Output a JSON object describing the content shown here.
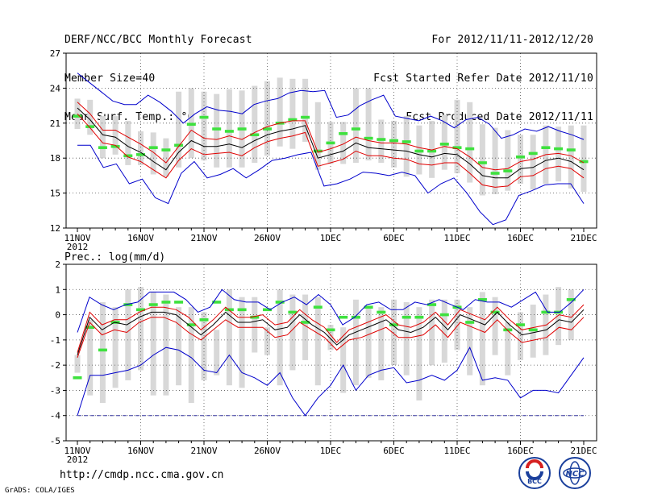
{
  "header": {
    "left": [
      "DERF/NCC/BCC Monthly Forecast",
      "Member Size=40",
      "Mean Surf. Temp.: °C"
    ],
    "right": [
      "For 2012/11/11-2012/12/20",
      "Fcst Started Refer Date 2012/11/10",
      "Fcst Produced Date 2012/11/11"
    ]
  },
  "footer": {
    "url": "http://cmdp.ncc.cma.gov.cn",
    "credit": "GrADS: COLA/IGES",
    "logo_bcc_text": "BCC",
    "logo_ncc_text": "NCC"
  },
  "colors": {
    "ensemble_mean": "#000000",
    "std_band": "#e00000",
    "extreme": "#0000cc",
    "observed_bar": "#3ee13e",
    "spread_box": "#d8d8d8",
    "grid": "#555555"
  },
  "chart_data": [
    {
      "type": "line",
      "title": "Mean Surf. Temp.: °C",
      "x_tick_labels": [
        "11NOV",
        "16NOV",
        "21NOV",
        "26NOV",
        "1DEC",
        "6DEC",
        "11DEC",
        "16DEC",
        "21DEC"
      ],
      "x_year_label": "2012",
      "ylim": [
        12,
        27
      ],
      "y_ticks": [
        12,
        15,
        18,
        21,
        24,
        27
      ],
      "series": [
        {
          "name": "Maximum",
          "values": [
            25.3,
            24.5,
            23.7,
            22.9,
            22.6,
            22.6,
            23.4,
            22.8,
            22.0,
            21.0,
            21.8,
            22.4,
            22.1,
            22.0,
            21.8,
            22.6,
            22.9,
            23.1,
            23.6,
            23.8,
            23.7,
            23.8,
            21.5,
            21.7,
            22.5,
            23.0,
            23.4,
            21.6,
            21.4,
            21.2,
            21.6,
            21.2,
            20.6,
            21.3,
            21.5,
            20.9,
            19.7,
            20.0,
            20.5,
            20.3,
            20.7,
            20.3,
            20.0,
            19.6
          ]
        },
        {
          "name": "Mean + 1 SD",
          "values": [
            22.8,
            21.8,
            20.4,
            20.4,
            19.8,
            19.2,
            18.5,
            17.6,
            19.0,
            20.4,
            19.7,
            19.6,
            19.9,
            19.6,
            20.2,
            20.7,
            21.0,
            21.2,
            21.2,
            18.5,
            18.8,
            19.2,
            19.8,
            19.5,
            19.3,
            19.3,
            19.2,
            18.9,
            18.7,
            19.0,
            18.8,
            18.1,
            17.2,
            17.0,
            17.1,
            17.7,
            17.9,
            18.3,
            18.4,
            18.2,
            17.6
          ]
        },
        {
          "name": "Ensemble Mean",
          "values": [
            22.3,
            21.3,
            20.0,
            19.8,
            19.0,
            18.5,
            17.7,
            17.0,
            18.5,
            19.5,
            19.0,
            19.0,
            19.2,
            18.9,
            19.5,
            20.0,
            20.3,
            20.5,
            20.8,
            18.0,
            18.3,
            18.6,
            19.3,
            18.9,
            18.8,
            18.7,
            18.6,
            18.3,
            18.1,
            18.4,
            18.3,
            17.5,
            16.5,
            16.3,
            16.3,
            17.1,
            17.2,
            17.8,
            18.0,
            17.7,
            17.0
          ]
        },
        {
          "name": "Mean - 1 SD",
          "values": [
            21.8,
            20.6,
            19.3,
            19.1,
            18.1,
            17.7,
            17.0,
            16.3,
            17.8,
            18.8,
            18.3,
            18.4,
            18.5,
            18.2,
            18.9,
            19.4,
            19.7,
            19.9,
            20.2,
            17.3,
            17.6,
            17.9,
            18.6,
            18.2,
            18.2,
            18.0,
            17.9,
            17.5,
            17.4,
            17.6,
            17.6,
            16.7,
            15.7,
            15.5,
            15.6,
            16.4,
            16.5,
            17.1,
            17.3,
            17.1,
            16.3
          ]
        },
        {
          "name": "Minimum",
          "values": [
            19.1,
            19.1,
            17.2,
            17.5,
            15.8,
            16.2,
            14.6,
            14.1,
            16.7,
            17.7,
            16.3,
            16.6,
            17.1,
            16.3,
            17.0,
            17.8,
            18.0,
            18.3,
            18.5,
            15.6,
            15.8,
            16.2,
            16.8,
            16.7,
            16.5,
            16.8,
            16.5,
            15.0,
            15.8,
            16.3,
            15.0,
            13.4,
            12.3,
            12.7,
            14.8,
            15.2,
            15.7,
            15.8,
            15.8,
            14.1
          ]
        }
      ],
      "spread_box_low": [
        20.5,
        20.0,
        18.0,
        18.3,
        17.4,
        17.4,
        16.6,
        16.4,
        17.2,
        18.0,
        17.8,
        17.2,
        17.2,
        17.2,
        17.6,
        18.2,
        19.0,
        18.8,
        19.4,
        17.0,
        17.5,
        17.5,
        17.6,
        17.8,
        17.6,
        17.2,
        16.4,
        16.6,
        16.3,
        17.0,
        16.7,
        15.9,
        14.8,
        14.9,
        15.2,
        15.8,
        15.3,
        15.8,
        16.0,
        15.4,
        15.1
      ],
      "spread_box_high": [
        23.1,
        23.0,
        21.6,
        21.6,
        21.2,
        20.3,
        20.2,
        19.7,
        23.7,
        24.0,
        23.7,
        23.5,
        23.9,
        23.8,
        24.2,
        24.6,
        24.9,
        24.8,
        24.8,
        22.8,
        21.1,
        21.1,
        24.0,
        24.0,
        21.3,
        21.2,
        21.6,
        20.8,
        21.2,
        21.7,
        23.0,
        22.8,
        20.9,
        20.6,
        20.4,
        20.0,
        20.0,
        20.8,
        20.7,
        20.8,
        20.8
      ],
      "observed_marks": [
        21.6,
        20.7,
        18.9,
        19.0,
        18.2,
        18.3,
        18.9,
        18.7,
        19.1,
        20.9,
        21.5,
        20.5,
        20.3,
        20.5,
        20.0,
        20.5,
        21.0,
        21.3,
        21.5,
        18.6,
        19.3,
        20.1,
        20.5,
        19.7,
        19.6,
        19.5,
        19.4,
        18.6,
        18.6,
        19.2,
        18.9,
        18.8,
        17.6,
        16.7,
        16.9,
        18.1,
        18.4,
        18.9,
        18.8,
        18.7,
        17.7
      ]
    },
    {
      "type": "line",
      "title": "Prec.: log(mm/d)",
      "x_tick_labels": [
        "11NOV",
        "16NOV",
        "21NOV",
        "26NOV",
        "1DEC",
        "6DEC",
        "11DEC",
        "16DEC",
        "21DEC"
      ],
      "x_year_label": "2012",
      "ylim": [
        -5,
        2
      ],
      "y_ticks": [
        -5,
        -4,
        -3,
        -2,
        -1,
        0,
        1,
        2
      ],
      "reference_line": -4,
      "series": [
        {
          "name": "Maximum",
          "values": [
            -0.7,
            0.7,
            0.4,
            0.2,
            0.4,
            0.5,
            0.9,
            0.9,
            0.9,
            0.6,
            0.1,
            0.3,
            1.0,
            0.6,
            0.5,
            0.5,
            0.2,
            0.5,
            0.7,
            0.4,
            0.8,
            0.4,
            -0.4,
            -0.1,
            0.4,
            0.5,
            0.2,
            0.2,
            0.5,
            0.4,
            0.6,
            0.4,
            0.2,
            0.6,
            0.5,
            0.5,
            0.3,
            0.6,
            0.9,
            0.1,
            0.1,
            0.5,
            1.0
          ]
        },
        {
          "name": "Mean + 1 SD",
          "values": [
            -1.5,
            0.1,
            -0.4,
            -0.2,
            -0.2,
            0.1,
            0.3,
            0.3,
            0.2,
            -0.1,
            -0.6,
            -0.2,
            0.3,
            -0.1,
            -0.1,
            0.0,
            -0.4,
            -0.3,
            0.2,
            -0.2,
            -0.5,
            -1.1,
            -0.6,
            -0.4,
            -0.2,
            0.0,
            -0.4,
            -0.5,
            -0.3,
            0.1,
            -0.4,
            0.2,
            0.0,
            -0.2,
            0.3,
            -0.2,
            -0.6,
            -0.5,
            -0.4,
            0.0,
            -0.1,
            0.4
          ]
        },
        {
          "name": "Ensemble Mean",
          "values": [
            -1.6,
            -0.1,
            -0.6,
            -0.3,
            -0.4,
            -0.1,
            0.1,
            0.1,
            0.0,
            -0.4,
            -0.8,
            -0.4,
            0.1,
            -0.3,
            -0.3,
            -0.2,
            -0.6,
            -0.5,
            0.0,
            -0.4,
            -0.7,
            -1.2,
            -0.8,
            -0.6,
            -0.4,
            -0.2,
            -0.6,
            -0.7,
            -0.5,
            -0.1,
            -0.6,
            0.0,
            -0.2,
            -0.4,
            0.1,
            -0.4,
            -0.8,
            -0.7,
            -0.6,
            -0.2,
            -0.3,
            0.2
          ]
        },
        {
          "name": "Mean - 1 SD",
          "values": [
            -1.7,
            -0.3,
            -0.8,
            -0.6,
            -0.7,
            -0.3,
            -0.1,
            -0.1,
            -0.3,
            -0.7,
            -1.0,
            -0.6,
            -0.2,
            -0.5,
            -0.5,
            -0.5,
            -0.9,
            -0.8,
            -0.3,
            -0.6,
            -0.9,
            -1.4,
            -1.0,
            -0.9,
            -0.7,
            -0.5,
            -0.9,
            -0.9,
            -0.8,
            -0.4,
            -0.9,
            -0.3,
            -0.5,
            -0.7,
            -0.2,
            -0.7,
            -1.1,
            -1.0,
            -0.9,
            -0.5,
            -0.6,
            -0.1
          ]
        },
        {
          "name": "Minimum",
          "values": [
            -4.0,
            -2.4,
            -2.4,
            -2.3,
            -2.2,
            -2.0,
            -1.6,
            -1.3,
            -1.4,
            -1.7,
            -2.2,
            -2.3,
            -1.6,
            -2.3,
            -2.5,
            -2.8,
            -2.3,
            -3.3,
            -4.0,
            -3.3,
            -2.8,
            -2.0,
            -3.0,
            -2.4,
            -2.2,
            -2.1,
            -2.7,
            -2.6,
            -2.4,
            -2.6,
            -2.2,
            -1.3,
            -2.6,
            -2.5,
            -2.6,
            -3.3,
            -3.0,
            -3.0,
            -3.1,
            -2.4,
            -1.7
          ]
        }
      ],
      "spread_box_low": [
        -2.3,
        -3.2,
        -3.5,
        -2.9,
        -2.6,
        -2.2,
        -3.2,
        -3.2,
        -2.8,
        -3.5,
        -2.6,
        -2.4,
        -2.8,
        -2.9,
        -1.5,
        -1.6,
        -2.8,
        -2.2,
        -1.8,
        -2.8,
        -1.4,
        -3.1,
        -2.8,
        -2.5,
        -2.6,
        -2.0,
        -2.4,
        -3.4,
        -2.0,
        -1.9,
        -1.4,
        -2.4,
        -2.8,
        -1.6,
        -2.4,
        -1.8,
        -1.7,
        -1.6,
        -1.2,
        -1.0,
        -1.4,
        -1.0
      ],
      "spread_box_high": [
        -1.6,
        -0.2,
        0.5,
        0.3,
        1.0,
        1.1,
        0.9,
        0.8,
        0.3,
        0.3,
        0.1,
        -0.6,
        1.0,
        0.7,
        0.7,
        -0.5,
        1.0,
        0.8,
        0.8,
        0.7,
        -0.4,
        -0.5,
        0.6,
        0.3,
        0.3,
        0.6,
        0.5,
        0.3,
        0.6,
        0.6,
        0.6,
        0.3,
        0.9,
        0.7,
        -0.3,
        0.1,
        0.4,
        0.8,
        1.1,
        1.0
      ],
      "observed_marks": [
        -2.5,
        -0.5,
        -1.4,
        -0.3,
        0.4,
        0.2,
        0.4,
        0.5,
        0.5,
        -0.4,
        -0.2,
        0.5,
        0.2,
        0.2,
        -0.1,
        0.2,
        0.5,
        0.1,
        -0.3,
        0.3,
        -0.6,
        -0.1,
        -0.1,
        0.3,
        0.1,
        -0.4,
        -0.1,
        -0.1,
        0.4,
        0.0,
        0.3,
        -0.3,
        0.6,
        0.1,
        -0.6,
        -0.4,
        -0.6,
        0.1,
        0.1,
        0.6
      ]
    }
  ]
}
